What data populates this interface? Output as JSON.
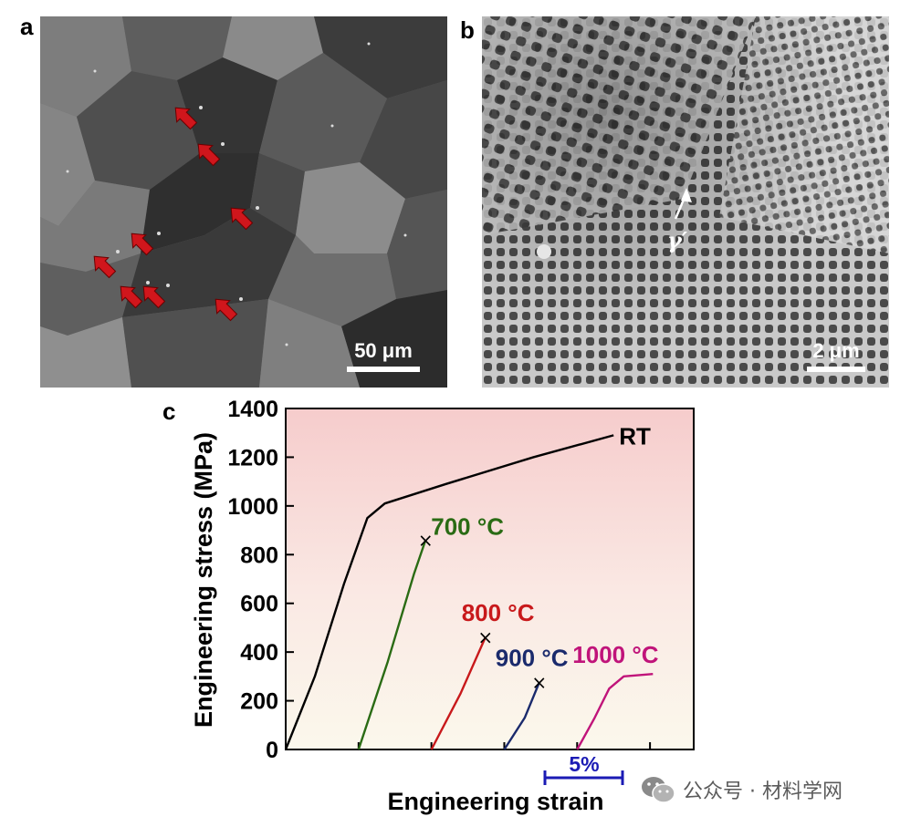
{
  "figure": {
    "panel_a": {
      "letter": "a",
      "scale_bar": "50 μm"
    },
    "panel_b": {
      "letter": "b",
      "scale_bar": "2 μm",
      "annotation": "γ′"
    },
    "panel_c": {
      "letter": "c",
      "strain_scale_label": "5%"
    }
  },
  "watermark": {
    "text": "公众号 · 材料学网",
    "icon": "wechat-icon"
  },
  "chart_data": {
    "type": "line",
    "xlabel": "Engineering strain",
    "ylabel": "Engineering stress (MPa)",
    "ylim": [
      0,
      1400
    ],
    "yticks": [
      "0",
      "200",
      "400",
      "600",
      "800",
      "1000",
      "1200",
      "1400"
    ],
    "x_tick_labels": [],
    "grid": false,
    "background": "gradient pink (top) to pale cream (bottom)",
    "series": [
      {
        "name": "RT",
        "color": "#000000",
        "points": [
          [
            0,
            0
          ],
          [
            2,
            300
          ],
          [
            4,
            680
          ],
          [
            5.6,
            950
          ],
          [
            6.8,
            1010
          ],
          [
            11,
            1090
          ],
          [
            17,
            1200
          ],
          [
            22.5,
            1290
          ]
        ]
      },
      {
        "name": "700 °C",
        "color": "#2a6b14",
        "offset_strain": 5,
        "points": [
          [
            0,
            0
          ],
          [
            2,
            360
          ],
          [
            3.8,
            720
          ],
          [
            4.6,
            860
          ]
        ],
        "fracture_marker": true
      },
      {
        "name": "800 °C",
        "color": "#c8191b",
        "offset_strain": 10,
        "points": [
          [
            0,
            0
          ],
          [
            2,
            230
          ],
          [
            3.7,
            460
          ]
        ],
        "fracture_marker": true
      },
      {
        "name": "900 °C",
        "color": "#1a2a6c",
        "offset_strain": 15,
        "points": [
          [
            0,
            0
          ],
          [
            1.4,
            130
          ],
          [
            2.4,
            275
          ]
        ],
        "fracture_marker": true
      },
      {
        "name": "1000 °C",
        "color": "#c0147a",
        "offset_strain": 20,
        "points": [
          [
            0,
            0
          ],
          [
            1.2,
            130
          ],
          [
            2.2,
            250
          ],
          [
            3.2,
            300
          ],
          [
            5.2,
            310
          ]
        ],
        "fracture_marker": false
      }
    ],
    "xlim": [
      0,
      28
    ],
    "labels": [
      {
        "text": "RT",
        "color": "#000000"
      },
      {
        "text": "700 °C",
        "color": "#2a6b14"
      },
      {
        "text": "800 °C",
        "color": "#c8191b"
      },
      {
        "text": "900 °C",
        "color": "#1a2a6c"
      },
      {
        "text": "1000 °C",
        "color": "#c0147a"
      }
    ]
  }
}
